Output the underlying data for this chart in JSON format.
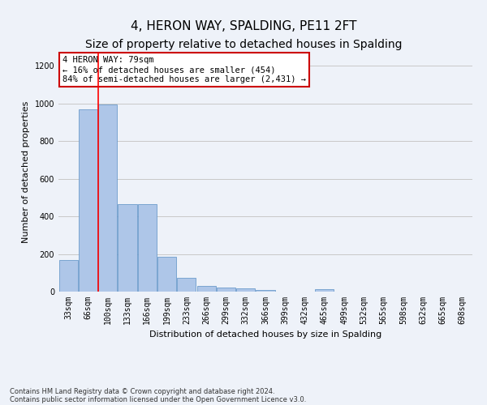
{
  "title": "4, HERON WAY, SPALDING, PE11 2FT",
  "subtitle": "Size of property relative to detached houses in Spalding",
  "xlabel": "Distribution of detached houses by size in Spalding",
  "ylabel": "Number of detached properties",
  "categories": [
    "33sqm",
    "66sqm",
    "100sqm",
    "133sqm",
    "166sqm",
    "199sqm",
    "233sqm",
    "266sqm",
    "299sqm",
    "332sqm",
    "366sqm",
    "399sqm",
    "432sqm",
    "465sqm",
    "499sqm",
    "532sqm",
    "565sqm",
    "598sqm",
    "632sqm",
    "665sqm",
    "698sqm"
  ],
  "values": [
    170,
    970,
    995,
    465,
    465,
    185,
    75,
    30,
    22,
    18,
    10,
    0,
    0,
    12,
    0,
    0,
    0,
    0,
    0,
    0,
    0
  ],
  "bar_color": "#aec6e8",
  "bar_edge_color": "#5a8fc4",
  "grid_color": "#c8c8c8",
  "background_color": "#eef2f9",
  "red_line_x": 1.5,
  "annotation_text": "4 HERON WAY: 79sqm\n← 16% of detached houses are smaller (454)\n84% of semi-detached houses are larger (2,431) →",
  "annotation_box_color": "#ffffff",
  "annotation_border_color": "#cc0000",
  "footnote_line1": "Contains HM Land Registry data © Crown copyright and database right 2024.",
  "footnote_line2": "Contains public sector information licensed under the Open Government Licence v3.0.",
  "ylim": [
    0,
    1270
  ],
  "yticks": [
    0,
    200,
    400,
    600,
    800,
    1000,
    1200
  ],
  "title_fontsize": 11,
  "subtitle_fontsize": 10,
  "axis_label_fontsize": 8,
  "tick_fontsize": 7,
  "annotation_fontsize": 7.5,
  "footnote_fontsize": 6
}
